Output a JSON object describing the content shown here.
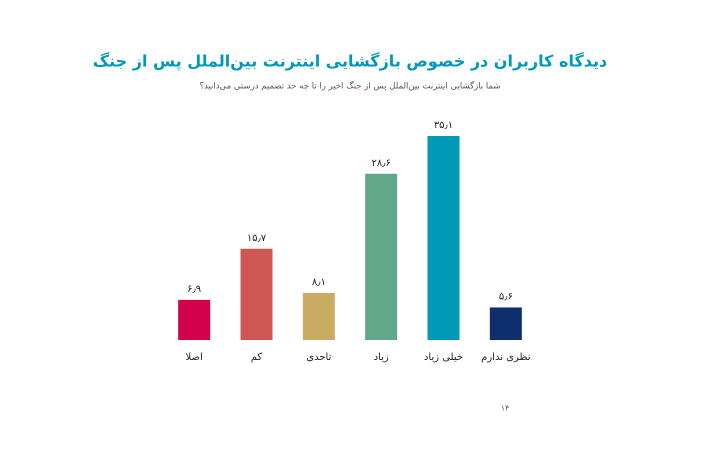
{
  "chart_data": {
    "type": "bar",
    "title": "دیدگاه کاربران در خصوص بازگشایی اینترنت بین‌الملل پس از جنگ",
    "subtitle": "شما بازگشایی اینترنت بین‌الملل پس از جنگ اخیر را تا چه حد تصمیم درستی می‌دانید؟",
    "categories": [
      "اصلا",
      "کم",
      "تاحدی",
      "زیاد",
      "خیلی زیاد",
      "نظری ندارم"
    ],
    "values": [
      6.9,
      15.7,
      8.1,
      28.6,
      35.1,
      5.6
    ],
    "value_labels": [
      "۶٫۹",
      "۱۵٫۷",
      "۸٫۱",
      "۲۸٫۶",
      "۳۵٫۱",
      "۵٫۶"
    ],
    "colors": [
      "#d3004b",
      "#cf5753",
      "#c9ac62",
      "#63a78b",
      "#0099b7",
      "#0d2f6d"
    ],
    "grid": false
  },
  "page_number": "۱۴"
}
